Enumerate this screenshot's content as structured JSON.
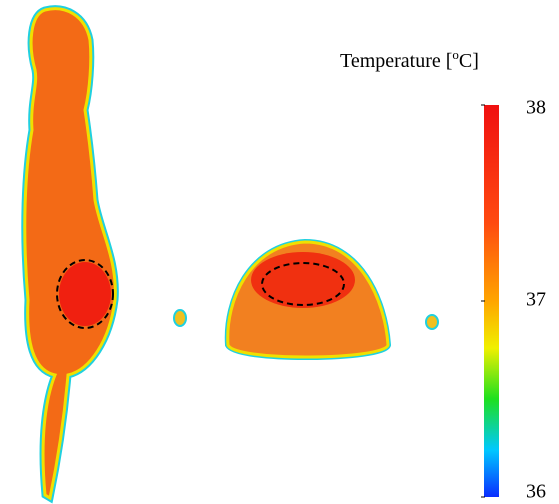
{
  "colorbar": {
    "title_prefix": "Temperature [",
    "title_sup": "o",
    "title_suffix": "C]",
    "lim": [
      36,
      38
    ],
    "ticks": [
      36,
      37,
      38
    ]
  }
}
